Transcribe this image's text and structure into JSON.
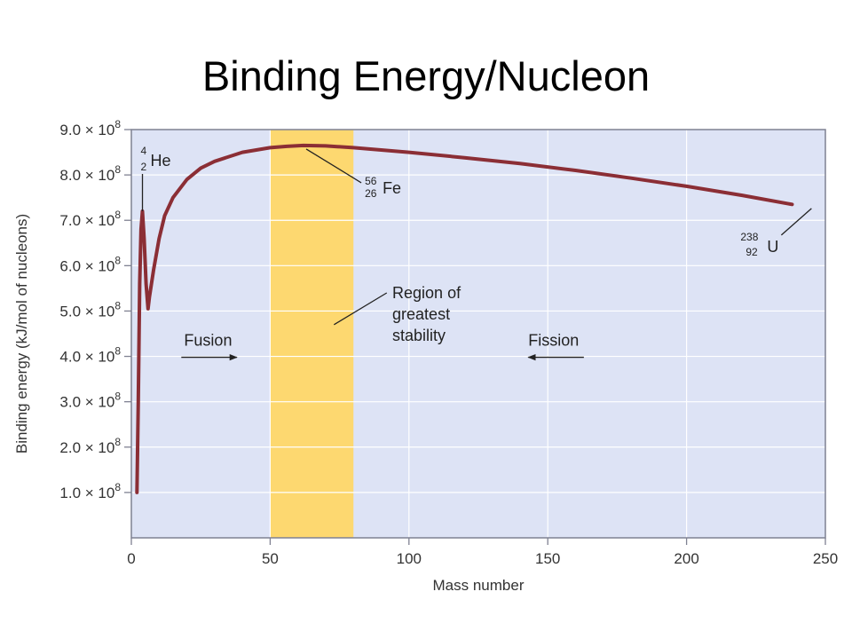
{
  "slide": {
    "title": "Binding Energy/Nucleon"
  },
  "colors": {
    "plot_background": "#dde3f5",
    "grid": "#ffffff",
    "stability_band": "#fdd870",
    "curve": "#8b2e35",
    "frame": "#7f8192",
    "text": "#333333"
  },
  "chart_data": {
    "type": "line",
    "title": "",
    "xlabel": "Mass number",
    "ylabel": "Binding energy (kJ/mol of nucleons)",
    "xlim": [
      0,
      250
    ],
    "ylim": [
      0,
      9
    ],
    "grid": true,
    "x_ticks": [
      0,
      50,
      100,
      150,
      200,
      250
    ],
    "x_tick_labels": [
      "0",
      "50",
      "100",
      "150",
      "200",
      "250"
    ],
    "y_ticks": [
      1,
      2,
      3,
      4,
      5,
      6,
      7,
      8,
      9
    ],
    "y_tick_labels": [
      {
        "mantissa": "1.0",
        "times": "×",
        "base": "10",
        "exp": "8"
      },
      {
        "mantissa": "2.0",
        "times": "×",
        "base": "10",
        "exp": "8"
      },
      {
        "mantissa": "3.0",
        "times": "×",
        "base": "10",
        "exp": "8"
      },
      {
        "mantissa": "4.0",
        "times": "×",
        "base": "10",
        "exp": "8"
      },
      {
        "mantissa": "5.0",
        "times": "×",
        "base": "10",
        "exp": "8"
      },
      {
        "mantissa": "6.0",
        "times": "×",
        "base": "10",
        "exp": "8"
      },
      {
        "mantissa": "7.0",
        "times": "×",
        "base": "10",
        "exp": "8"
      },
      {
        "mantissa": "8.0",
        "times": "×",
        "base": "10",
        "exp": "8"
      },
      {
        "mantissa": "9.0",
        "times": "×",
        "base": "10",
        "exp": "8"
      }
    ],
    "series": [
      {
        "values": [
          {
            "x": 2,
            "y": 1.0
          },
          {
            "x": 2.5,
            "y": 3.0
          },
          {
            "x": 3,
            "y": 5.6
          },
          {
            "x": 3.5,
            "y": 6.8
          },
          {
            "x": 4,
            "y": 7.2
          },
          {
            "x": 4.6,
            "y": 6.6
          },
          {
            "x": 5.3,
            "y": 5.6
          },
          {
            "x": 6,
            "y": 5.05
          },
          {
            "x": 6.5,
            "y": 5.3
          },
          {
            "x": 8,
            "y": 5.9
          },
          {
            "x": 10,
            "y": 6.6
          },
          {
            "x": 12,
            "y": 7.1
          },
          {
            "x": 15,
            "y": 7.5
          },
          {
            "x": 20,
            "y": 7.9
          },
          {
            "x": 25,
            "y": 8.15
          },
          {
            "x": 30,
            "y": 8.3
          },
          {
            "x": 40,
            "y": 8.5
          },
          {
            "x": 50,
            "y": 8.6
          },
          {
            "x": 56,
            "y": 8.63
          },
          {
            "x": 62,
            "y": 8.65
          },
          {
            "x": 70,
            "y": 8.64
          },
          {
            "x": 80,
            "y": 8.6
          },
          {
            "x": 100,
            "y": 8.5
          },
          {
            "x": 120,
            "y": 8.38
          },
          {
            "x": 140,
            "y": 8.25
          },
          {
            "x": 160,
            "y": 8.1
          },
          {
            "x": 180,
            "y": 7.93
          },
          {
            "x": 200,
            "y": 7.75
          },
          {
            "x": 220,
            "y": 7.55
          },
          {
            "x": 238,
            "y": 7.35
          }
        ]
      }
    ],
    "highlight_band": {
      "x_start": 50,
      "x_end": 80
    },
    "annotations": {
      "helium": {
        "mass": "4",
        "atomic": "2",
        "symbol": "He",
        "point": {
          "x": 4,
          "y": 7.2
        }
      },
      "iron": {
        "mass": "56",
        "atomic": "26",
        "symbol": "Fe",
        "point": {
          "x": 63,
          "y": 8.65
        }
      },
      "uranium": {
        "mass": "238",
        "atomic": "92",
        "symbol": "U",
        "point": {
          "x": 245,
          "y": 7.3
        }
      },
      "region": {
        "lines": [
          "Region of",
          "greatest",
          "stability"
        ]
      },
      "fusion": {
        "text": "Fusion",
        "direction": "right"
      },
      "fission": {
        "text": "Fission",
        "direction": "left"
      }
    }
  }
}
